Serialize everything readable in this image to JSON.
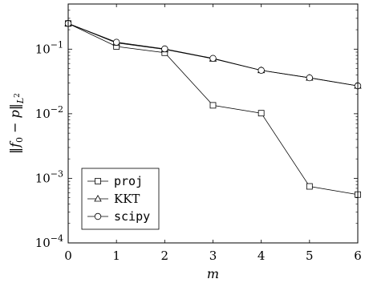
{
  "chart_data": {
    "type": "line",
    "title": "",
    "xlabel": "m",
    "ylabel": "‖f0 − p‖L2",
    "yscale": "log",
    "xlim": [
      0,
      6
    ],
    "ylim": [
      0.0001,
      0.5
    ],
    "x": [
      0,
      1,
      2,
      3,
      4,
      5,
      6
    ],
    "x_ticks": [
      "0",
      "1",
      "2",
      "3",
      "4",
      "5",
      "6"
    ],
    "y_ticks": [
      {
        "value": 0.0001,
        "base": "10",
        "exp": "−4"
      },
      {
        "value": 0.001,
        "base": "10",
        "exp": "−3"
      },
      {
        "value": 0.01,
        "base": "10",
        "exp": "−2"
      },
      {
        "value": 0.1,
        "base": "10",
        "exp": "−1"
      }
    ],
    "grid": false,
    "legend_position": "bottom-left",
    "series": [
      {
        "name": "proj",
        "marker": "square",
        "values": [
          0.25,
          0.11,
          0.088,
          0.0135,
          0.0102,
          0.00075,
          0.00056
        ]
      },
      {
        "name": "KKT",
        "marker": "triangle",
        "values": [
          0.25,
          0.125,
          0.099,
          0.071,
          0.047,
          0.036,
          0.027
        ]
      },
      {
        "name": "scipy",
        "marker": "circle",
        "values": [
          0.25,
          0.128,
          0.101,
          0.072,
          0.047,
          0.036,
          0.027
        ]
      }
    ]
  }
}
